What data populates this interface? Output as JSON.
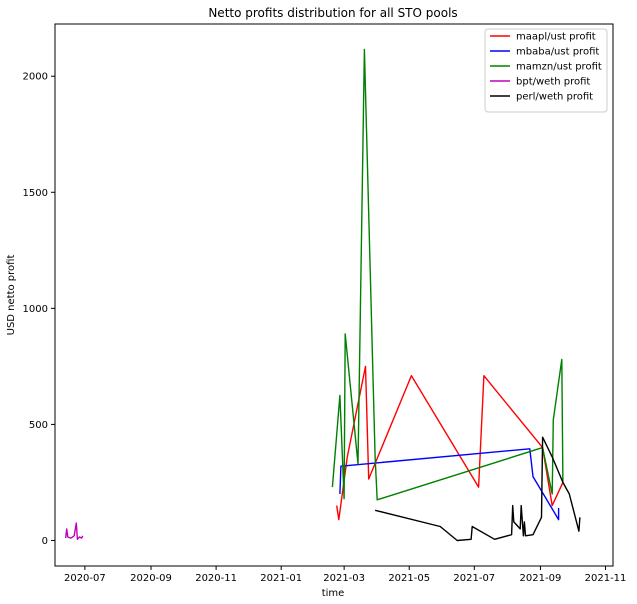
{
  "chart_data": {
    "type": "line",
    "title": "Netto profits distribution for all STO pools",
    "xlabel": "time",
    "ylabel": "USD netto profit",
    "x_axis_type": "date",
    "xlim": [
      "2020-06-03",
      "2021-11-08"
    ],
    "ylim": [
      -110,
      2225
    ],
    "x_ticks": [
      "2020-07-01",
      "2020-09-01",
      "2020-11-01",
      "2021-01-01",
      "2021-03-01",
      "2021-05-01",
      "2021-07-01",
      "2021-09-01",
      "2021-11-01"
    ],
    "x_tick_labels": [
      "2020-07",
      "2020-09",
      "2020-11",
      "2021-01",
      "2021-03",
      "2021-05",
      "2021-07",
      "2021-09",
      "2021-11"
    ],
    "y_ticks": [
      0,
      500,
      1000,
      1500,
      2000
    ],
    "y_tick_labels": [
      "0",
      "500",
      "1000",
      "1500",
      "2000"
    ],
    "grid": false,
    "legend_position": "upper-right",
    "series": [
      {
        "name": "maapl/ust profit",
        "color": "#ff0000",
        "points": [
          [
            "2021-02-22",
            150
          ],
          [
            "2021-02-24",
            90
          ],
          [
            "2021-03-04",
            360
          ],
          [
            "2021-03-21",
            750
          ],
          [
            "2021-03-24",
            265
          ],
          [
            "2021-05-03",
            710
          ],
          [
            "2021-07-05",
            230
          ],
          [
            "2021-07-10",
            710
          ],
          [
            "2021-09-03",
            400
          ],
          [
            "2021-09-12",
            150
          ],
          [
            "2021-09-22",
            250
          ]
        ]
      },
      {
        "name": "mbaba/ust profit",
        "color": "#0000ff",
        "points": [
          [
            "2021-02-25",
            200
          ],
          [
            "2021-02-26",
            320
          ],
          [
            "2021-08-22",
            395
          ],
          [
            "2021-08-25",
            275
          ],
          [
            "2021-09-18",
            90
          ],
          [
            "2021-09-18",
            140
          ]
        ]
      },
      {
        "name": "mamzn/ust profit",
        "color": "#008000",
        "points": [
          [
            "2021-02-18",
            230
          ],
          [
            "2021-02-25",
            625
          ],
          [
            "2021-03-01",
            180
          ],
          [
            "2021-03-02",
            890
          ],
          [
            "2021-03-14",
            330
          ],
          [
            "2021-03-20",
            2115
          ],
          [
            "2021-03-30",
            360
          ],
          [
            "2021-04-01",
            175
          ],
          [
            "2021-09-03",
            400
          ],
          [
            "2021-09-12",
            200
          ],
          [
            "2021-09-13",
            520
          ],
          [
            "2021-09-21",
            780
          ],
          [
            "2021-09-22",
            250
          ]
        ]
      },
      {
        "name": "bpt/weth profit",
        "color": "#bf00bf",
        "points": [
          [
            "2020-06-13",
            10
          ],
          [
            "2020-06-14",
            50
          ],
          [
            "2020-06-15",
            15
          ],
          [
            "2020-06-18",
            10
          ],
          [
            "2020-06-21",
            20
          ],
          [
            "2020-06-23",
            75
          ],
          [
            "2020-06-24",
            5
          ],
          [
            "2020-06-26",
            15
          ],
          [
            "2020-06-28",
            10
          ],
          [
            "2020-06-29",
            20
          ]
        ]
      },
      {
        "name": "perl/weth profit",
        "color": "#000000",
        "points": [
          [
            "2021-03-30",
            130
          ],
          [
            "2021-05-30",
            60
          ],
          [
            "2021-06-15",
            0
          ],
          [
            "2021-06-28",
            5
          ],
          [
            "2021-06-29",
            60
          ],
          [
            "2021-07-20",
            5
          ],
          [
            "2021-08-05",
            25
          ],
          [
            "2021-08-06",
            150
          ],
          [
            "2021-08-07",
            80
          ],
          [
            "2021-08-13",
            50
          ],
          [
            "2021-08-14",
            150
          ],
          [
            "2021-08-16",
            20
          ],
          [
            "2021-08-17",
            80
          ],
          [
            "2021-08-18",
            20
          ],
          [
            "2021-08-25",
            25
          ],
          [
            "2021-09-02",
            100
          ],
          [
            "2021-09-03",
            445
          ],
          [
            "2021-09-12",
            360
          ],
          [
            "2021-09-22",
            250
          ],
          [
            "2021-09-28",
            200
          ],
          [
            "2021-10-07",
            40
          ],
          [
            "2021-10-08",
            100
          ]
        ]
      }
    ]
  }
}
